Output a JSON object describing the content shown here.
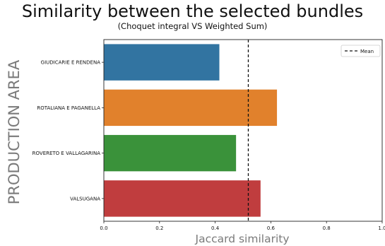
{
  "chart_data": {
    "type": "bar",
    "orientation": "horizontal",
    "title": "Similarity between the selected bundles",
    "subtitle": "(Choquet integral VS Weighted Sum)",
    "xlabel": "Jaccard similarity",
    "ylabel": "PRODUCTION AREA",
    "xlim": [
      0,
      1.0
    ],
    "xticks": [
      "0.0",
      "0.2",
      "0.4",
      "0.6",
      "0.8",
      "1.0"
    ],
    "categories": [
      "GIUDICARIE E RENDENA",
      "ROTALIANA E PAGANELLA",
      "ROVERETO E VALLAGARINA",
      "VALSUGANA"
    ],
    "values": [
      0.415,
      0.622,
      0.475,
      0.563
    ],
    "colors": [
      "#3274a1",
      "#e1812c",
      "#3a923a",
      "#c03d3e"
    ],
    "mean": 0.519,
    "legend": {
      "position": "top-right",
      "entries": [
        "Mean"
      ]
    },
    "grid": false
  }
}
